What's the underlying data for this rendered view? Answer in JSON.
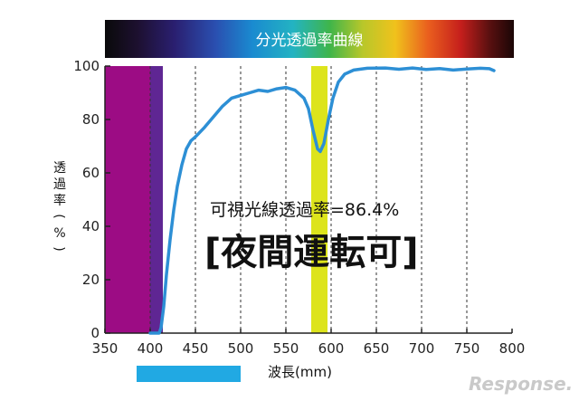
{
  "chart_data": {
    "type": "line",
    "title": "分光透過率曲線",
    "xlabel": "波長(mm)",
    "ylabel_chars": [
      "透",
      "過",
      "率",
      "(",
      "%",
      ")"
    ],
    "xlim": [
      350,
      800
    ],
    "ylim": [
      0,
      100
    ],
    "x_ticks": [
      350,
      400,
      450,
      500,
      550,
      600,
      650,
      700,
      750,
      800
    ],
    "y_ticks": [
      0,
      20,
      40,
      60,
      80,
      100
    ],
    "grid": "vertical-dashed",
    "series": [
      {
        "color": "#2d8fd5",
        "points": [
          [
            400,
            0
          ],
          [
            410,
            0
          ],
          [
            412,
            2
          ],
          [
            415,
            10
          ],
          [
            418,
            22
          ],
          [
            422,
            35
          ],
          [
            426,
            46
          ],
          [
            430,
            55
          ],
          [
            435,
            63
          ],
          [
            440,
            69
          ],
          [
            445,
            72
          ],
          [
            450,
            73.5
          ],
          [
            460,
            77
          ],
          [
            470,
            81
          ],
          [
            480,
            85
          ],
          [
            490,
            88
          ],
          [
            500,
            89
          ],
          [
            510,
            90
          ],
          [
            520,
            91
          ],
          [
            530,
            90.5
          ],
          [
            540,
            91.5
          ],
          [
            550,
            92
          ],
          [
            560,
            91
          ],
          [
            570,
            88
          ],
          [
            575,
            84
          ],
          [
            580,
            76
          ],
          [
            585,
            69
          ],
          [
            588,
            68
          ],
          [
            592,
            71
          ],
          [
            597,
            80
          ],
          [
            602,
            88
          ],
          [
            608,
            94
          ],
          [
            615,
            97
          ],
          [
            625,
            98.5
          ],
          [
            640,
            99.2
          ],
          [
            660,
            99.3
          ],
          [
            675,
            98.8
          ],
          [
            690,
            99.3
          ],
          [
            705,
            98.7
          ],
          [
            720,
            99.1
          ],
          [
            735,
            98.5
          ],
          [
            750,
            98.9
          ],
          [
            765,
            99.2
          ],
          [
            775,
            99
          ],
          [
            780,
            98.3
          ]
        ]
      }
    ],
    "bands": [
      {
        "from": 350,
        "to": 400,
        "color": "#9c0c84"
      },
      {
        "from": 400,
        "to": 414,
        "color": "#5f2693"
      },
      {
        "from": 578,
        "to": 596,
        "color": "#dde41c"
      }
    ],
    "range_bar": {
      "from": 385,
      "to": 500,
      "color": "#21a9e3"
    },
    "annotations": [
      "可視光線透過率=86.4%",
      "[夜間運転可]"
    ]
  },
  "watermark": "Response."
}
